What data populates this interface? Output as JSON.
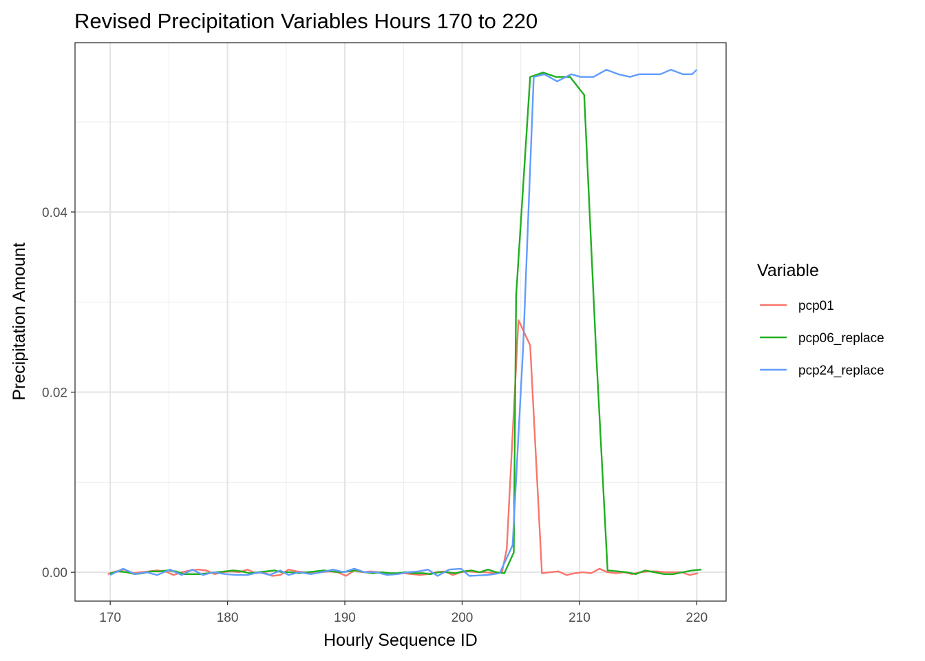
{
  "chart_data": {
    "type": "line",
    "title": "Revised Precipitation Variables Hours 170 to 220",
    "xlabel": "Hourly Sequence ID",
    "ylabel": "Precipitation Amount",
    "xlim": [
      167,
      222.5
    ],
    "ylim": [
      -0.0032,
      0.0588
    ],
    "x_ticks": [
      170,
      180,
      190,
      200,
      210,
      220
    ],
    "x_tick_labels": [
      "170",
      "180",
      "190",
      "200",
      "210",
      "220"
    ],
    "y_ticks": [
      0.0,
      0.02,
      0.04
    ],
    "y_tick_labels": [
      "0.00",
      "0.02",
      "0.04"
    ],
    "grid": true,
    "legend_title": "Variable",
    "legend_position": "right",
    "series": [
      {
        "name": "pcp01",
        "color": "#F8766D",
        "points": [
          [
            169.8,
            -0.0002
          ],
          [
            170.5,
            0.0001
          ],
          [
            171.2,
            0.0003
          ],
          [
            171.9,
            -0.0001
          ],
          [
            172.6,
            0.0
          ],
          [
            173.3,
            0.0001
          ],
          [
            174.0,
            0.0002
          ],
          [
            174.7,
            0.0001
          ],
          [
            175.4,
            -0.0003
          ],
          [
            176.1,
            0.0
          ],
          [
            176.8,
            0.0002
          ],
          [
            177.5,
            0.0003
          ],
          [
            178.2,
            0.0002
          ],
          [
            178.9,
            -0.0002
          ],
          [
            179.6,
            0.0
          ],
          [
            180.3,
            0.0001
          ],
          [
            181.0,
            0.0
          ],
          [
            181.7,
            0.0003
          ],
          [
            182.4,
            -0.0001
          ],
          [
            183.1,
            0.0
          ],
          [
            183.8,
            -0.0004
          ],
          [
            184.5,
            -0.0003
          ],
          [
            185.2,
            0.0003
          ],
          [
            185.9,
            0.0001
          ],
          [
            186.6,
            0.0
          ],
          [
            187.3,
            -0.0001
          ],
          [
            188.0,
            0.0
          ],
          [
            188.7,
            0.0001
          ],
          [
            189.4,
            0.0
          ],
          [
            190.1,
            -0.0004
          ],
          [
            190.8,
            0.0002
          ],
          [
            191.5,
            0.0
          ],
          [
            192.2,
            0.0001
          ],
          [
            192.9,
            0.0
          ],
          [
            193.6,
            -0.0001
          ],
          [
            194.3,
            -0.0002
          ],
          [
            195.0,
            -0.0001
          ],
          [
            195.7,
            -0.0002
          ],
          [
            196.4,
            -0.0003
          ],
          [
            197.1,
            -0.0002
          ],
          [
            197.8,
            0.0
          ],
          [
            198.5,
            0.0001
          ],
          [
            199.2,
            -0.0003
          ],
          [
            199.9,
            0.0
          ],
          [
            200.6,
            0.0001
          ],
          [
            201.3,
            0.0
          ],
          [
            202.0,
            0.0
          ],
          [
            202.7,
            -0.0001
          ],
          [
            203.4,
            0.0
          ],
          [
            203.8,
            0.0026
          ],
          [
            204.8,
            0.028
          ],
          [
            205.8,
            0.0252
          ],
          [
            206.8,
            -0.0001
          ],
          [
            207.5,
            0.0
          ],
          [
            208.2,
            0.0001
          ],
          [
            208.9,
            -0.0003
          ],
          [
            209.6,
            -0.0001
          ],
          [
            210.3,
            0.0
          ],
          [
            211.0,
            -0.0001
          ],
          [
            211.7,
            0.0004
          ],
          [
            212.4,
            0.0
          ],
          [
            213.1,
            -0.0001
          ],
          [
            213.8,
            0.0
          ],
          [
            214.5,
            -0.0002
          ],
          [
            215.2,
            0.0
          ],
          [
            215.9,
            0.0001
          ],
          [
            216.6,
            0.0001
          ],
          [
            217.3,
            0.0
          ],
          [
            218.0,
            0.0
          ],
          [
            218.7,
            0.0
          ],
          [
            219.4,
            -0.0003
          ],
          [
            220.1,
            -0.0001
          ]
        ]
      },
      {
        "name": "pcp06_replace",
        "color": "#1FAF1F",
        "points": [
          [
            170.0,
            -0.0001
          ],
          [
            170.7,
            0.0001
          ],
          [
            171.4,
            0.0
          ],
          [
            172.1,
            -0.0002
          ],
          [
            172.8,
            -0.0001
          ],
          [
            173.5,
            0.0001
          ],
          [
            174.2,
            0.0001
          ],
          [
            174.9,
            0.0002
          ],
          [
            175.6,
            0.0001
          ],
          [
            176.3,
            -0.0002
          ],
          [
            177.0,
            -0.0002
          ],
          [
            177.7,
            -0.0002
          ],
          [
            178.4,
            -0.0001
          ],
          [
            179.1,
            0.0
          ],
          [
            179.8,
            0.0001
          ],
          [
            180.5,
            0.0002
          ],
          [
            181.2,
            0.0001
          ],
          [
            181.9,
            -0.0001
          ],
          [
            182.6,
            0.0
          ],
          [
            183.3,
            0.0001
          ],
          [
            184.0,
            0.0002
          ],
          [
            184.7,
            0.0
          ],
          [
            185.4,
            0.0
          ],
          [
            186.1,
            -0.0001
          ],
          [
            186.8,
            0.0
          ],
          [
            187.5,
            0.0001
          ],
          [
            188.2,
            0.0002
          ],
          [
            188.9,
            0.0001
          ],
          [
            189.6,
            0.0
          ],
          [
            190.3,
            0.0001
          ],
          [
            191.0,
            0.0002
          ],
          [
            191.7,
            0.0
          ],
          [
            192.4,
            -0.0001
          ],
          [
            193.1,
            0.0
          ],
          [
            193.8,
            -0.0001
          ],
          [
            194.5,
            -0.0001
          ],
          [
            195.2,
            0.0
          ],
          [
            195.9,
            -0.0001
          ],
          [
            196.6,
            -0.0001
          ],
          [
            197.3,
            -0.0002
          ],
          [
            198.0,
            0.0
          ],
          [
            198.7,
            0.0
          ],
          [
            199.4,
            -0.0001
          ],
          [
            200.1,
            0.0001
          ],
          [
            200.8,
            0.0002
          ],
          [
            201.5,
            0.0
          ],
          [
            202.2,
            0.0003
          ],
          [
            202.9,
            0.0
          ],
          [
            203.6,
            -0.0001
          ],
          [
            204.4,
            0.0022
          ],
          [
            204.6,
            0.0307
          ],
          [
            205.8,
            0.055
          ],
          [
            206.9,
            0.0555
          ],
          [
            208.0,
            0.055
          ],
          [
            209.2,
            0.055
          ],
          [
            210.4,
            0.053
          ],
          [
            211.4,
            0.025
          ],
          [
            212.4,
            0.0002
          ],
          [
            213.3,
            0.0001
          ],
          [
            214.0,
            0.0
          ],
          [
            214.8,
            -0.0002
          ],
          [
            215.6,
            0.0002
          ],
          [
            216.4,
            0.0
          ],
          [
            217.2,
            -0.0002
          ],
          [
            218.0,
            -0.0002
          ],
          [
            218.8,
            0.0
          ],
          [
            219.6,
            0.0002
          ],
          [
            220.4,
            0.0003
          ]
        ]
      },
      {
        "name": "pcp24_replace",
        "color": "#619CFF",
        "points": [
          [
            170.0,
            -0.0003
          ],
          [
            171.1,
            0.0004
          ],
          [
            172.1,
            -0.0002
          ],
          [
            173.1,
            0.0
          ],
          [
            174.0,
            -0.0003
          ],
          [
            175.1,
            0.0003
          ],
          [
            176.1,
            -0.0003
          ],
          [
            177.0,
            0.0003
          ],
          [
            177.9,
            -0.0003
          ],
          [
            178.8,
            0.0
          ],
          [
            179.8,
            -0.0002
          ],
          [
            180.8,
            -0.0003
          ],
          [
            181.7,
            -0.0003
          ],
          [
            182.7,
            0.0
          ],
          [
            183.6,
            -0.0003
          ],
          [
            184.5,
            0.0002
          ],
          [
            185.2,
            -0.0003
          ],
          [
            186.1,
            0.0
          ],
          [
            187.1,
            -0.0002
          ],
          [
            188.0,
            0.0
          ],
          [
            189.0,
            0.0003
          ],
          [
            189.9,
            0.0
          ],
          [
            190.8,
            0.0004
          ],
          [
            191.7,
            0.0
          ],
          [
            192.7,
            0.0
          ],
          [
            193.6,
            -0.0003
          ],
          [
            194.5,
            -0.0002
          ],
          [
            195.4,
            0.0
          ],
          [
            196.3,
            0.0001
          ],
          [
            197.1,
            0.0003
          ],
          [
            197.9,
            -0.0004
          ],
          [
            198.9,
            0.0003
          ],
          [
            199.9,
            0.0004
          ],
          [
            200.6,
            -0.0004
          ],
          [
            202.2,
            -0.0003
          ],
          [
            203.2,
            -0.0001
          ],
          [
            204.3,
            0.003
          ],
          [
            205.2,
            0.025
          ],
          [
            206.1,
            0.055
          ],
          [
            207.0,
            0.0553
          ],
          [
            208.1,
            0.0545
          ],
          [
            209.3,
            0.0553
          ],
          [
            210.1,
            0.055
          ],
          [
            211.2,
            0.055
          ],
          [
            212.3,
            0.0558
          ],
          [
            213.3,
            0.0553
          ],
          [
            214.3,
            0.055
          ],
          [
            215.1,
            0.0553
          ],
          [
            216.1,
            0.0553
          ],
          [
            216.9,
            0.0553
          ],
          [
            217.8,
            0.0558
          ],
          [
            218.8,
            0.0553
          ],
          [
            219.6,
            0.0553
          ],
          [
            220.0,
            0.0558
          ]
        ]
      }
    ]
  }
}
